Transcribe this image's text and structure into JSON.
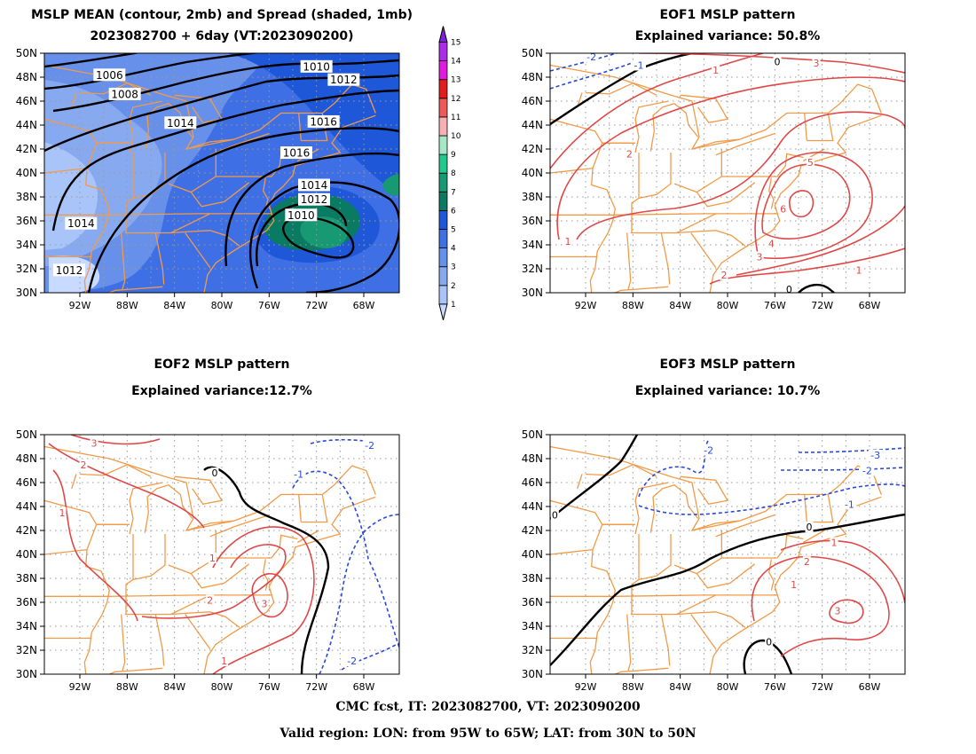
{
  "panels": [
    {
      "id": "mean",
      "title_line1": "MSLP MEAN (contour, 2mb) and Spread (shaded, 1mb)",
      "title_line2": "2023082700 + 6day (VT:2023090200)",
      "contour_labels": [
        {
          "text": "1006",
          "lon": -89.5,
          "lat": 48.2
        },
        {
          "text": "1008",
          "lon": -88.2,
          "lat": 46.6
        },
        {
          "text": "1010",
          "lon": -72.0,
          "lat": 48.9
        },
        {
          "text": "1012",
          "lon": -69.7,
          "lat": 47.8
        },
        {
          "text": "1014",
          "lon": -83.5,
          "lat": 44.2
        },
        {
          "text": "1016",
          "lon": -71.4,
          "lat": 44.3
        },
        {
          "text": "1016",
          "lon": -73.7,
          "lat": 41.7
        },
        {
          "text": "1014",
          "lon": -72.2,
          "lat": 39.0
        },
        {
          "text": "1012",
          "lon": -72.2,
          "lat": 37.8
        },
        {
          "text": "1010",
          "lon": -73.3,
          "lat": 36.5
        },
        {
          "text": "1014",
          "lon": -91.9,
          "lat": 35.8
        },
        {
          "text": "1012",
          "lon": -92.9,
          "lat": 31.9
        }
      ]
    },
    {
      "id": "eof1",
      "title_line1": "EOF1 MSLP pattern",
      "title_line2": "Explained variance: 50.8%",
      "contour_labels": [
        {
          "text": "0",
          "lon": -75.8,
          "lat": 49.3,
          "color": "#000000"
        },
        {
          "text": "-1",
          "lon": -87.5,
          "lat": 49.0,
          "color": "#2b48d8"
        },
        {
          "text": "-2",
          "lon": -91.5,
          "lat": 49.7,
          "color": "#2b48d8"
        },
        {
          "text": "1",
          "lon": -81.0,
          "lat": 48.6,
          "color": "#e04848"
        },
        {
          "text": "3",
          "lon": -72.5,
          "lat": 49.2,
          "color": "#e04848"
        },
        {
          "text": "2",
          "lon": -88.3,
          "lat": 41.6,
          "color": "#e04848"
        },
        {
          "text": "5",
          "lon": -73.0,
          "lat": 40.9,
          "color": "#e04848"
        },
        {
          "text": "6",
          "lon": -75.3,
          "lat": 37.0,
          "color": "#e04848"
        },
        {
          "text": "4",
          "lon": -76.3,
          "lat": 34.1,
          "color": "#e04848"
        },
        {
          "text": "3",
          "lon": -77.3,
          "lat": 33.0,
          "color": "#e04848"
        },
        {
          "text": "2",
          "lon": -80.3,
          "lat": 31.5,
          "color": "#e04848"
        },
        {
          "text": "1",
          "lon": -68.9,
          "lat": 31.9,
          "color": "#e04848"
        },
        {
          "text": "1",
          "lon": -93.5,
          "lat": 34.3,
          "color": "#e04848"
        },
        {
          "text": "0",
          "lon": -74.8,
          "lat": 30.3,
          "color": "#000000"
        }
      ]
    },
    {
      "id": "eof2",
      "title_line1": "EOF2 MSLP pattern",
      "title_line2": "Explained variance:12.7%",
      "contour_labels": [
        {
          "text": "0",
          "lon": -80.6,
          "lat": 46.8,
          "color": "#000000"
        },
        {
          "text": "-1",
          "lon": -73.5,
          "lat": 46.7,
          "color": "#2b48d8"
        },
        {
          "text": "-2",
          "lon": -67.5,
          "lat": 49.1,
          "color": "#2b48d8"
        },
        {
          "text": "-2",
          "lon": -69.0,
          "lat": 31.1,
          "color": "#2b48d8"
        },
        {
          "text": "3",
          "lon": -90.8,
          "lat": 49.3,
          "color": "#e04848"
        },
        {
          "text": "2",
          "lon": -91.7,
          "lat": 47.5,
          "color": "#e04848"
        },
        {
          "text": "1",
          "lon": -93.5,
          "lat": 43.5,
          "color": "#e04848"
        },
        {
          "text": "1",
          "lon": -80.8,
          "lat": 39.7,
          "color": "#e04848"
        },
        {
          "text": "2",
          "lon": -81.0,
          "lat": 36.2,
          "color": "#e04848"
        },
        {
          "text": "3",
          "lon": -76.4,
          "lat": 35.9,
          "color": "#e04848"
        },
        {
          "text": "1",
          "lon": -79.8,
          "lat": 31.1,
          "color": "#e04848"
        }
      ]
    },
    {
      "id": "eof3",
      "title_line1": "EOF3 MSLP pattern",
      "title_line2": "Explained variance: 10.7%",
      "contour_labels": [
        {
          "text": "0",
          "lon": -94.6,
          "lat": 43.3,
          "color": "#000000"
        },
        {
          "text": "0",
          "lon": -73.1,
          "lat": 42.3,
          "color": "#000000"
        },
        {
          "text": "0",
          "lon": -76.5,
          "lat": 32.7,
          "color": "#000000"
        },
        {
          "text": "-2",
          "lon": -81.6,
          "lat": 48.7,
          "color": "#2b48d8"
        },
        {
          "text": "-3",
          "lon": -67.5,
          "lat": 48.3,
          "color": "#2b48d8"
        },
        {
          "text": "-2",
          "lon": -68.2,
          "lat": 47.0,
          "color": "#2b48d8"
        },
        {
          "text": "-1",
          "lon": -69.7,
          "lat": 44.2,
          "color": "#2b48d8"
        },
        {
          "text": "1",
          "lon": -71.0,
          "lat": 41.0,
          "color": "#e04848"
        },
        {
          "text": "2",
          "lon": -73.3,
          "lat": 39.4,
          "color": "#e04848"
        },
        {
          "text": "1",
          "lon": -74.4,
          "lat": 37.5,
          "color": "#e04848"
        },
        {
          "text": "3",
          "lon": -70.7,
          "lat": 35.3,
          "color": "#e04848"
        }
      ]
    }
  ],
  "axes": {
    "lon_ticks": [
      "92W",
      "88W",
      "84W",
      "80W",
      "76W",
      "72W",
      "68W"
    ],
    "lat_ticks": [
      "50N",
      "48N",
      "46N",
      "44N",
      "42N",
      "40N",
      "38N",
      "36N",
      "34N",
      "32N",
      "30N"
    ]
  },
  "colorbar": {
    "labels": [
      "1",
      "2",
      "3",
      "4",
      "5",
      "6",
      "7",
      "8",
      "9",
      "10",
      "11",
      "12",
      "13",
      "14",
      "15"
    ],
    "colors": [
      "#c8daff",
      "#a9c4f8",
      "#86a9f0",
      "#6690ea",
      "#3f6fe4",
      "#1e58d9",
      "#0a7a63",
      "#179a74",
      "#23c88c",
      "#a6e8c6",
      "#f6b2b2",
      "#ee5a5a",
      "#e21d1d",
      "#e11ae0",
      "#ac2be6",
      "#7d1fdb"
    ]
  },
  "footer": {
    "line1": "CMC fcst, IT: 2023082700, VT: 2023090200",
    "line2": "Valid region: LON: from 95W to 65W; LAT: from 30N to 50N"
  },
  "colors": {
    "state_lines": "#f39a46",
    "positive_contour": "#e04848",
    "negative_contour": "#2b48d8",
    "zero_contour": "#000000",
    "grid": "#9a9a9a"
  }
}
